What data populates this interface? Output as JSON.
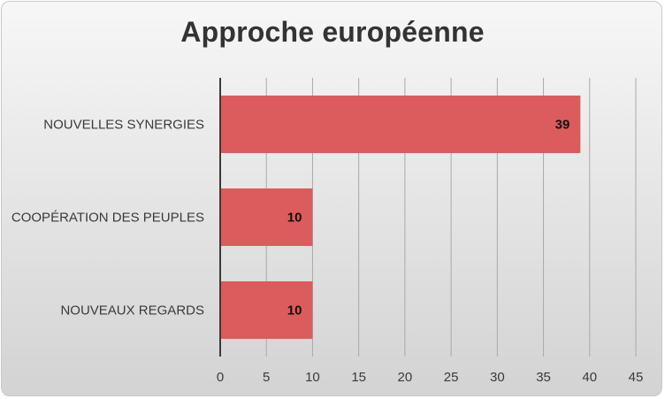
{
  "chart_data": {
    "type": "bar",
    "orientation": "horizontal",
    "title": "Approche européenne",
    "categories": [
      "NOUVELLES SYNERGIES",
      "COOPÉRATION DES PEUPLES",
      "NOUVEAUX REGARDS"
    ],
    "values": [
      39,
      10,
      10
    ],
    "data_labels": [
      "39",
      "10",
      "10"
    ],
    "xlim": [
      0,
      45
    ],
    "xticks": [
      0,
      5,
      10,
      15,
      20,
      25,
      30,
      35,
      40,
      45
    ],
    "xtick_labels": [
      "0",
      "5",
      "10",
      "15",
      "20",
      "25",
      "30",
      "35",
      "40",
      "45"
    ],
    "grid": "vertical",
    "legend": "none",
    "bar_color": "#dc5b5c",
    "axis_color": "#3a3a3a",
    "grid_color": "#a9a9a9"
  }
}
